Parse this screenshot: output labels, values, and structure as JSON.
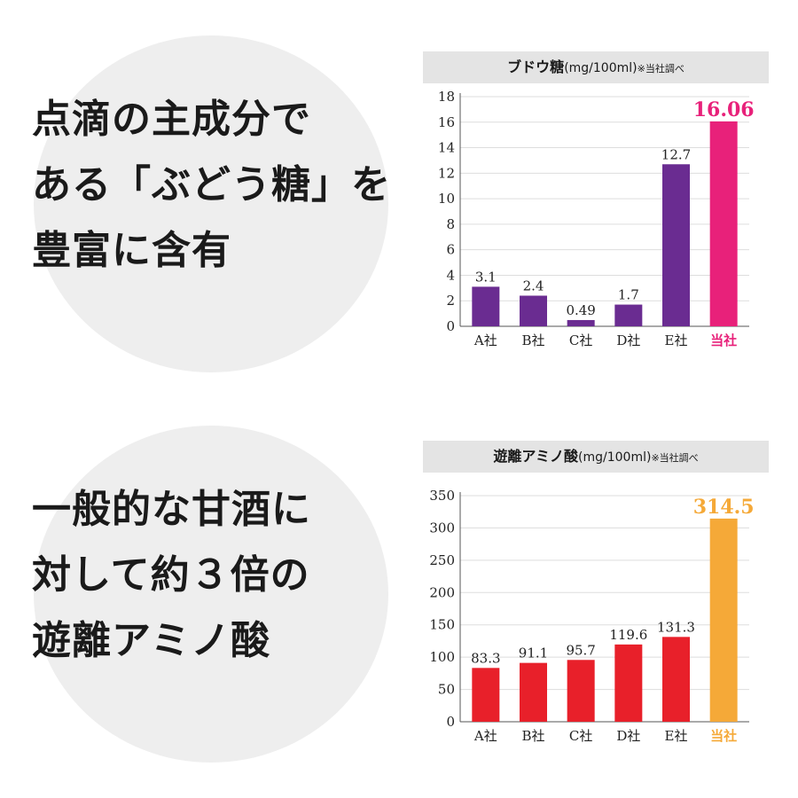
{
  "left": {
    "headline_top": [
      "点滴の主成分で",
      "ある「ぶどう糖」を",
      "豊富に含有"
    ],
    "headline_bottom": [
      "一般的な甘酒に",
      "対して約３倍の",
      "遊離アミノ酸"
    ]
  },
  "charts": {
    "top": {
      "title_main": "ブドウ糖",
      "title_unit": "(mg/100ml)",
      "title_note": "※当社調べ"
    },
    "bottom": {
      "title_main": "遊離アミノ酸",
      "title_unit": "(mg/100ml)",
      "title_note": "※当社調べ"
    }
  },
  "chart_data": [
    {
      "type": "bar",
      "title": "ブドウ糖(mg/100ml)※当社調べ",
      "categories": [
        "A社",
        "B社",
        "C社",
        "D社",
        "E社",
        "当社"
      ],
      "values": [
        3.1,
        2.4,
        0.49,
        1.7,
        12.7,
        16.06
      ],
      "value_labels": [
        "3.1",
        "2.4",
        "0.49",
        "1.7",
        "12.7",
        "16.06"
      ],
      "ylim": [
        0,
        18
      ],
      "yticks": [
        "0",
        "2",
        "4",
        "6",
        "8",
        "10",
        "12",
        "14",
        "16",
        "18"
      ],
      "colors": [
        "#6a2c91",
        "#6a2c91",
        "#6a2c91",
        "#6a2c91",
        "#6a2c91",
        "#e8217a"
      ],
      "highlight_color": "#e8217a",
      "grid": true,
      "xlabel": "",
      "ylabel": ""
    },
    {
      "type": "bar",
      "title": "遊離アミノ酸(mg/100ml)※当社調べ",
      "categories": [
        "A社",
        "B社",
        "C社",
        "D社",
        "E社",
        "当社"
      ],
      "values": [
        83.3,
        91.1,
        95.7,
        119.6,
        131.3,
        314.5
      ],
      "value_labels": [
        "83.3",
        "91.1",
        "95.7",
        "119.6",
        "131.3",
        "314.5"
      ],
      "ylim": [
        0,
        350
      ],
      "yticks": [
        "0",
        "50",
        "100",
        "150",
        "200",
        "250",
        "300",
        "350"
      ],
      "colors": [
        "#e8202a",
        "#e8202a",
        "#e8202a",
        "#e8202a",
        "#e8202a",
        "#f5a938"
      ],
      "highlight_color": "#f5a938",
      "grid": true,
      "xlabel": "",
      "ylabel": ""
    }
  ]
}
